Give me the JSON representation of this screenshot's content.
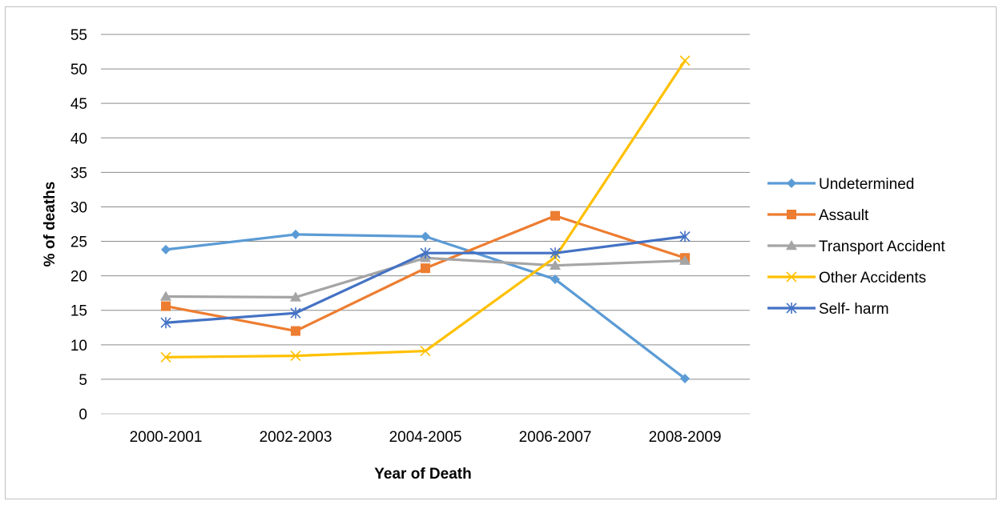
{
  "chart_data": {
    "type": "line",
    "title": "",
    "xlabel": "Year of Death",
    "ylabel": "% of deaths",
    "categories": [
      "2000-2001",
      "2002-2003",
      "2004-2005",
      "2006-2007",
      "2008-2009"
    ],
    "ylim": [
      0,
      55
    ],
    "yticks": [
      0,
      5,
      10,
      15,
      20,
      25,
      30,
      35,
      40,
      45,
      50,
      55
    ],
    "grid": true,
    "legend_position": "right",
    "series": [
      {
        "name": "Undetermined",
        "values": [
          23.8,
          26.0,
          25.7,
          19.5,
          5.1
        ],
        "color": "#5b9bd5",
        "marker": "diamond"
      },
      {
        "name": "Assault",
        "values": [
          15.6,
          12.0,
          21.1,
          28.7,
          22.6
        ],
        "color": "#ed7d31",
        "marker": "square"
      },
      {
        "name": "Transport Accident",
        "values": [
          17.0,
          16.9,
          22.6,
          21.5,
          22.2
        ],
        "color": "#a5a5a5",
        "marker": "triangle"
      },
      {
        "name": "Other Accidents",
        "values": [
          8.2,
          8.4,
          9.1,
          22.7,
          51.2
        ],
        "color": "#ffc000",
        "marker": "x"
      },
      {
        "name": "Self- harm",
        "values": [
          13.2,
          14.6,
          23.3,
          23.3,
          25.7
        ],
        "color": "#4472c4",
        "marker": "star"
      }
    ]
  }
}
